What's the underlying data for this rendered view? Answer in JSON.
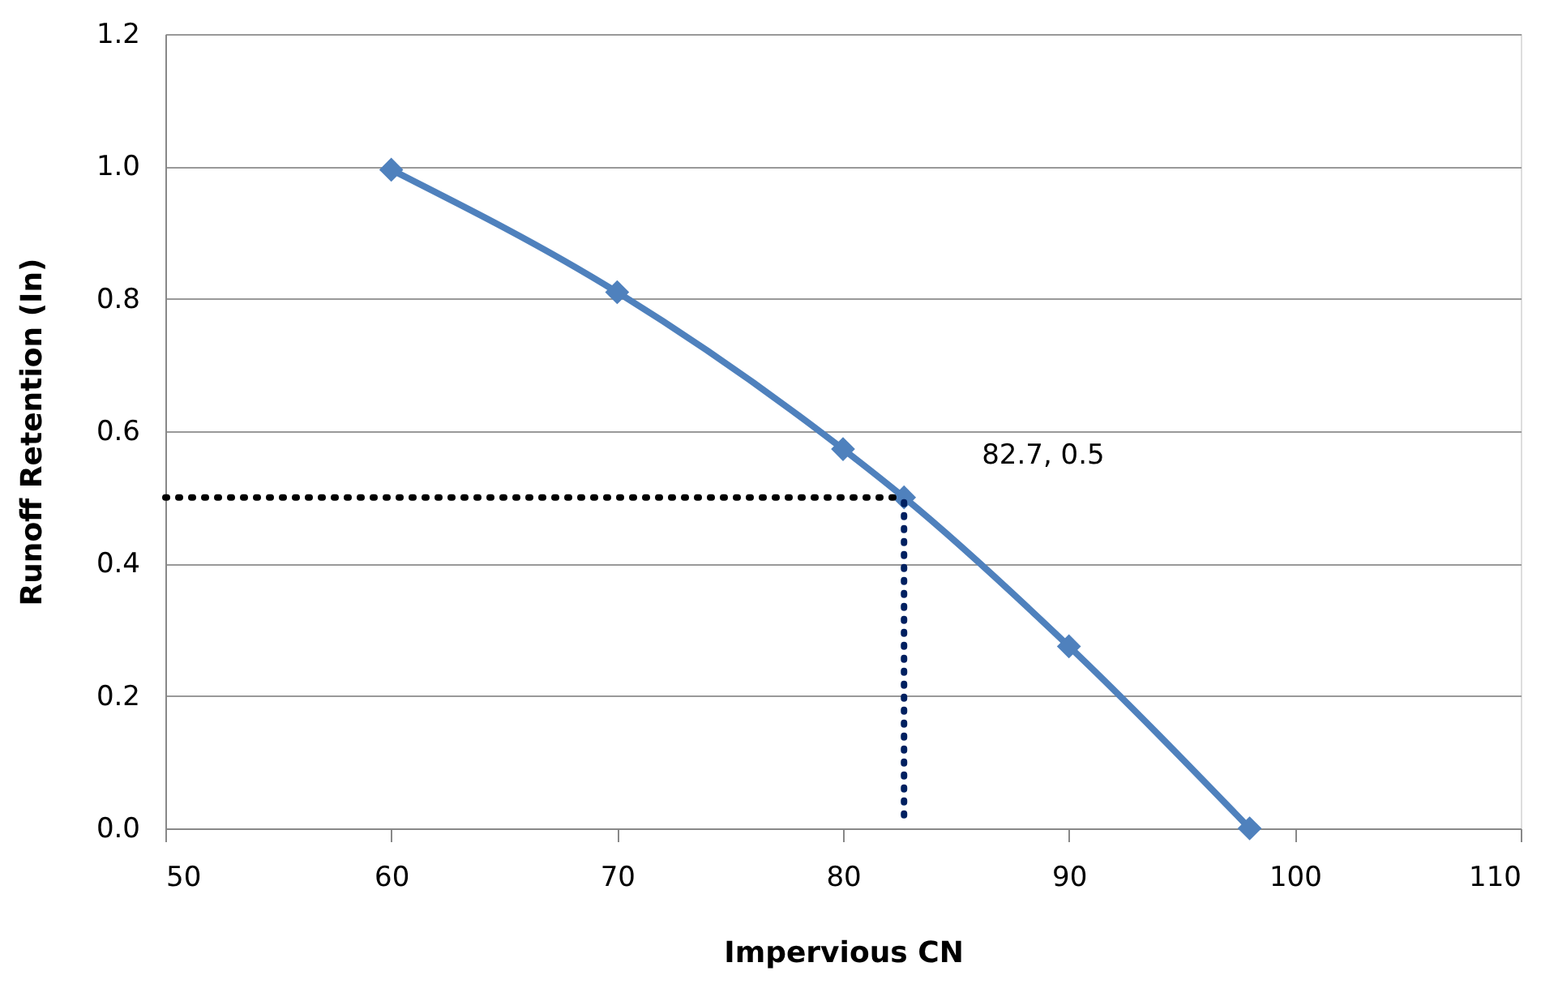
{
  "chart_data": {
    "type": "line",
    "xlabel": "Impervious CN",
    "ylabel": "Runoff Retention (In)",
    "xlim": [
      50,
      110
    ],
    "xticks": [
      50,
      60,
      70,
      80,
      90,
      100,
      110
    ],
    "ylim": [
      0,
      1.2
    ],
    "yticks": [
      {
        "value": 0,
        "label": "0.0"
      },
      {
        "value": 0.2,
        "label": "0.2"
      },
      {
        "value": 0.4,
        "label": "0.4"
      },
      {
        "value": 0.6,
        "label": "0.6"
      },
      {
        "value": 0.8,
        "label": "0.8"
      },
      {
        "value": 1.0,
        "label": "1.0"
      },
      {
        "value": 1.2,
        "label": "1.2"
      }
    ],
    "grid": "y",
    "series": [
      {
        "x": [
          60,
          70,
          80,
          82.7,
          90,
          98
        ],
        "values": [
          0.995,
          0.81,
          0.573,
          0.5,
          0.275,
          0
        ],
        "color": "#4f81bd",
        "marker": "diamond",
        "line_style": "solid"
      },
      {
        "x": [
          50,
          82.7
        ],
        "values": [
          0.5,
          0.5
        ],
        "color": "#000000",
        "marker": "none",
        "line_style": "dotted"
      },
      {
        "x": [
          82.7,
          82.7
        ],
        "values": [
          0.02,
          0.5
        ],
        "color": "#002060",
        "marker": "none",
        "line_style": "dotted"
      }
    ],
    "annotations": [
      {
        "text": "82.7, 0.5",
        "x": 82.7,
        "y": 0.5
      }
    ]
  }
}
